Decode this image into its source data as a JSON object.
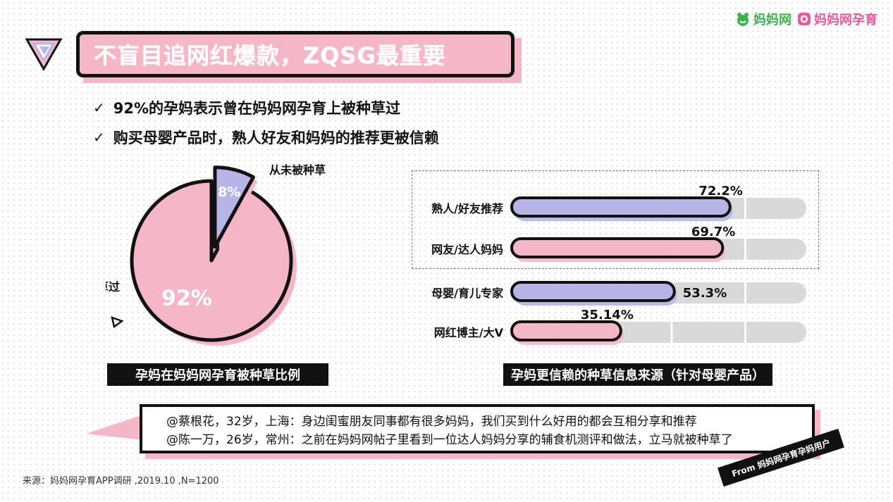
{
  "header": {
    "logo_left": "妈妈网",
    "logo_right": "妈妈网孕育",
    "title": "不盲目追网红爆款，ZQSG最重要"
  },
  "bullets": [
    "92%的孕妈表示曾在妈妈网孕育上被种草过",
    "购买母婴产品时，熟人好友和妈妈的推荐更被信赖"
  ],
  "pie_caption": "孕妈在妈妈网孕育被种草比例",
  "bar_caption": "孕妈更信赖的种草信息来源（针对母婴产品）",
  "quotes": [
    "@蔡根花，32岁，上海：身边闺蜜朋友同事都有很多妈妈，我们买到什么好用的都会互相分享和推荐",
    "@陈一万，26岁，常州：之前在妈妈网帖子里看到一位达人妈妈分享的辅食机测评和做法，立马就被种草了"
  ],
  "source": "来源：妈妈网孕育APP调研 ,2019.10 ,N=1200",
  "from_badge": "From 妈妈网孕育孕妈用户",
  "colors": {
    "pink": "#f5b7c8",
    "lavender": "#b8b4e6",
    "track": "#d9d9d9",
    "ink": "#111111",
    "logo_green": "#3cb34a",
    "logo_pink": "#e85a9b"
  },
  "chart_data": [
    {
      "type": "pie",
      "categories": [
        "被种草过",
        "从未被种草"
      ],
      "values": [
        92,
        8
      ],
      "labels": [
        "92%",
        "8%"
      ]
    },
    {
      "type": "bar",
      "orientation": "horizontal",
      "categories": [
        "熟人/好友推荐",
        "网友/达人妈妈",
        "母婴/育儿专家",
        "网红博主/大V"
      ],
      "values": [
        72.2,
        69.7,
        53.3,
        35.14
      ],
      "labels": [
        "72.2%",
        "69.7%",
        "53.3%",
        "35.14%"
      ],
      "xlim": [
        0,
        100
      ]
    }
  ]
}
